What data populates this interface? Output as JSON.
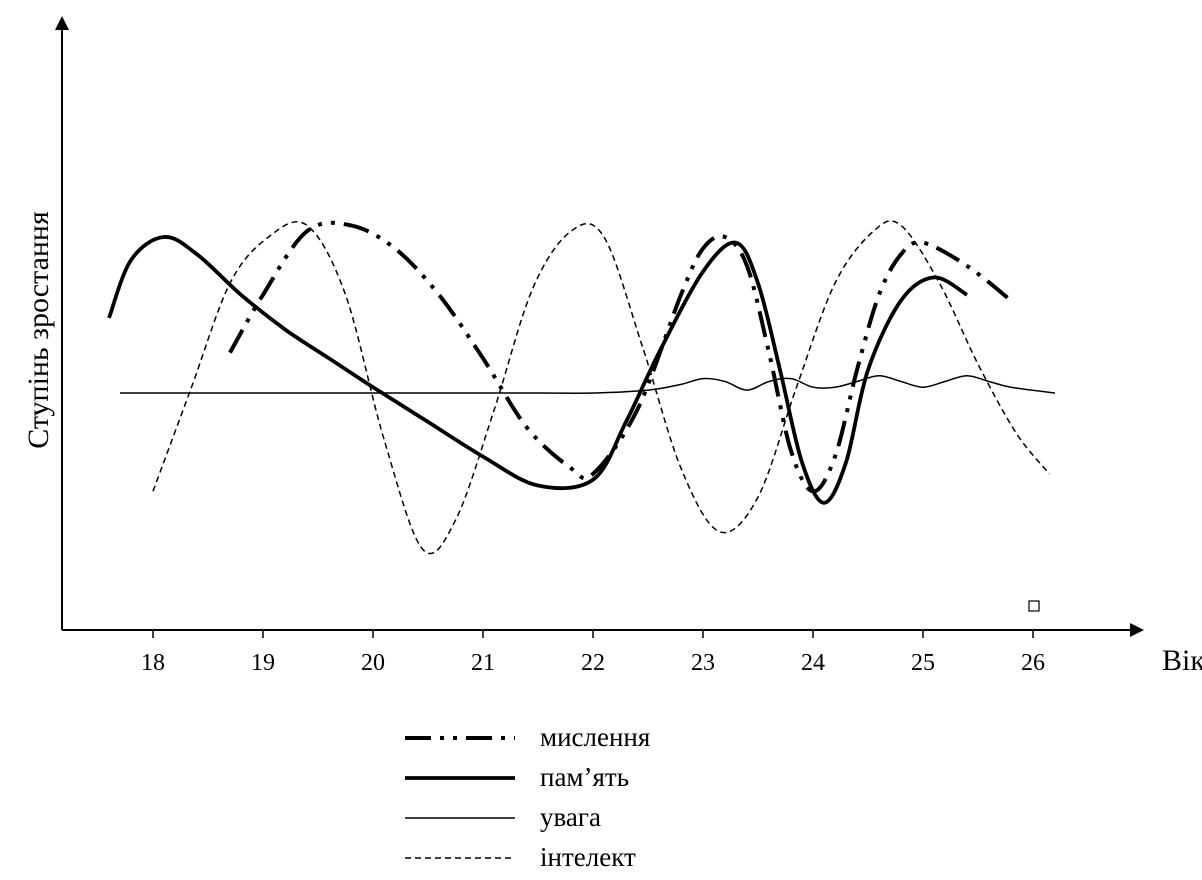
{
  "chart_data": {
    "type": "line",
    "title": "",
    "xlabel": "Вік",
    "ylabel": "Ступінь зростання",
    "categories": [
      "18",
      "19",
      "20",
      "21",
      "22",
      "23",
      "24",
      "25",
      "26"
    ],
    "xlim": [
      17.2,
      27.0
    ],
    "ylim": [
      0,
      10
    ],
    "yticks_shown": false,
    "grid": false,
    "legend_position": "bottom-center",
    "series": [
      {
        "name": "мислення",
        "style": "dash-dot-dot",
        "x": [
          18.7,
          19.0,
          19.4,
          19.8,
          20.2,
          20.6,
          21.0,
          21.4,
          21.8,
          22.0,
          22.4,
          22.8,
          23.0,
          23.2,
          23.4,
          23.6,
          23.8,
          24.0,
          24.2,
          24.4,
          24.6,
          24.8,
          25.0,
          25.4,
          25.8
        ],
        "values": [
          4.8,
          5.8,
          6.9,
          7.0,
          6.6,
          5.8,
          4.7,
          3.5,
          2.8,
          2.7,
          3.8,
          5.8,
          6.6,
          6.8,
          6.3,
          4.8,
          3.1,
          2.4,
          3.0,
          4.5,
          5.8,
          6.5,
          6.7,
          6.3,
          5.7
        ]
      },
      {
        "name": "пам'ять",
        "style": "solid-bold",
        "x": [
          17.6,
          17.8,
          18.1,
          18.4,
          18.8,
          19.2,
          19.6,
          20.0,
          20.5,
          21.0,
          21.5,
          22.0,
          22.3,
          22.6,
          23.0,
          23.3,
          23.5,
          23.7,
          23.9,
          24.1,
          24.3,
          24.5,
          24.8,
          25.1,
          25.4
        ],
        "values": [
          5.4,
          6.4,
          6.8,
          6.5,
          5.8,
          5.2,
          4.7,
          4.2,
          3.6,
          3.0,
          2.5,
          2.6,
          3.6,
          4.8,
          6.2,
          6.7,
          6.0,
          4.5,
          2.9,
          2.2,
          2.9,
          4.5,
          5.7,
          6.1,
          5.8
        ]
      },
      {
        "name": "увага",
        "style": "solid-thin",
        "x": [
          17.7,
          18.5,
          19.5,
          20.5,
          21.5,
          22.0,
          22.5,
          22.8,
          23.0,
          23.2,
          23.4,
          23.6,
          23.8,
          24.0,
          24.2,
          24.4,
          24.6,
          24.8,
          25.0,
          25.2,
          25.4,
          25.6,
          25.8,
          26.2
        ],
        "values": [
          4.1,
          4.1,
          4.1,
          4.1,
          4.1,
          4.1,
          4.15,
          4.25,
          4.35,
          4.3,
          4.15,
          4.3,
          4.35,
          4.2,
          4.2,
          4.3,
          4.4,
          4.3,
          4.2,
          4.3,
          4.4,
          4.3,
          4.2,
          4.1
        ]
      },
      {
        "name": "інтелект",
        "style": "dashed-thin",
        "x": [
          18.0,
          18.35,
          18.7,
          19.05,
          19.4,
          19.75,
          20.1,
          20.45,
          20.75,
          21.1,
          21.45,
          21.8,
          22.1,
          22.45,
          22.8,
          23.15,
          23.5,
          23.85,
          24.2,
          24.55,
          24.8,
          25.15,
          25.5,
          25.85,
          26.15
        ],
        "values": [
          2.4,
          4.2,
          6.0,
          6.8,
          7.0,
          5.8,
          3.3,
          1.4,
          1.9,
          3.8,
          5.9,
          6.9,
          6.8,
          4.9,
          2.8,
          1.7,
          2.3,
          4.2,
          6.0,
          6.9,
          7.0,
          6.0,
          4.6,
          3.4,
          2.7
        ]
      }
    ],
    "legend": [
      {
        "label": "мислення",
        "style": "dash-dot-dot"
      },
      {
        "label": "пам’ять",
        "style": "solid-bold"
      },
      {
        "label": "увага",
        "style": "solid-thin"
      },
      {
        "label": "інтелект",
        "style": "dashed-thin"
      }
    ]
  }
}
